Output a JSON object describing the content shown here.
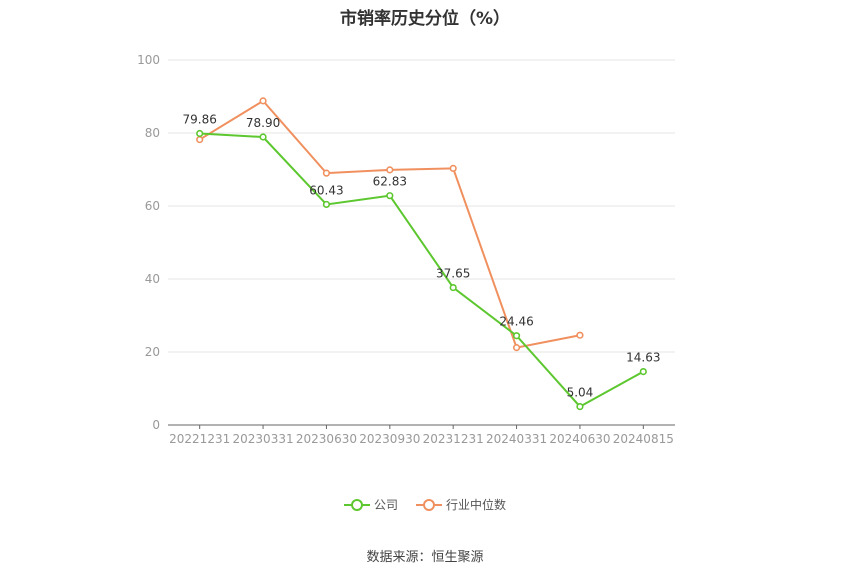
{
  "chart_data": {
    "type": "line",
    "title": "市销率历史分位（%）",
    "categories": [
      "20221231",
      "20230331",
      "20230630",
      "20230930",
      "20231231",
      "20240331",
      "20240630",
      "20240815"
    ],
    "ylim": [
      0,
      100
    ],
    "yticks": [
      0,
      20,
      40,
      60,
      80,
      100
    ],
    "grid": true,
    "legend_position": "bottom",
    "series": [
      {
        "name": "公司",
        "color": "#5cc72e",
        "values": [
          79.86,
          78.9,
          60.43,
          62.83,
          37.65,
          24.46,
          5.04,
          14.63
        ],
        "labels": [
          "79.86",
          "78.90",
          "60.43",
          "62.83",
          "37.65",
          "24.46",
          "5.04",
          "14.63"
        ]
      },
      {
        "name": "行业中位数",
        "color": "#f0905f",
        "values": [
          78.2,
          88.8,
          69.0,
          69.9,
          70.3,
          21.2,
          24.6,
          null
        ]
      }
    ]
  },
  "footer": {
    "source": "数据来源：恒生聚源"
  }
}
